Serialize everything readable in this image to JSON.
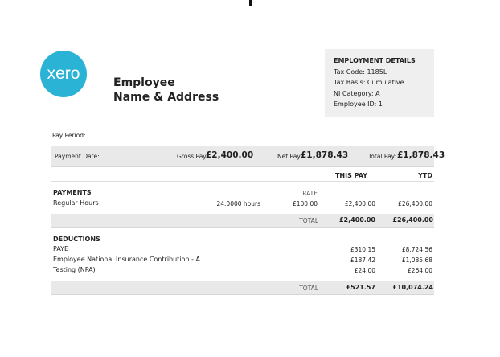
{
  "logo": "xero",
  "employee": {
    "line1": "Employee",
    "line2": "Name & Address"
  },
  "employment_details": {
    "title": "EMPLOYMENT DETAILS",
    "tax_code": "Tax Code: 1185L",
    "tax_basis": "Tax Basis: Cumulative",
    "ni_category": "NI Category: A",
    "employee_id": "Employee ID: 1"
  },
  "pay_period_label": "Pay Period:",
  "summary": {
    "payment_date_label": "Payment Date:",
    "gross_label": "Gross Pay:",
    "gross": "£2,400.00",
    "net_label": "Net Pay:",
    "net": "£1,878.43",
    "total_label": "Total Pay:",
    "total": "£1,878.43"
  },
  "columns": {
    "this_pay": "THIS PAY",
    "ytd": "YTD",
    "rate": "RATE"
  },
  "payments": {
    "title": "PAYMENTS",
    "rows": [
      {
        "name": "Regular Hours",
        "hours": "24.0000 hours",
        "rate": "£100.00",
        "this_pay": "£2,400.00",
        "ytd": "£26,400.00"
      }
    ],
    "total_label": "TOTAL",
    "total_this_pay": "£2,400.00",
    "total_ytd": "£26,400.00"
  },
  "deductions": {
    "title": "DEDUCTIONS",
    "rows": [
      {
        "name": "PAYE",
        "this_pay": "£310.15",
        "ytd": "£8,724.56"
      },
      {
        "name": "Employee National Insurance Contribution - A",
        "this_pay": "£187.42",
        "ytd": "£1,085.68"
      },
      {
        "name": "Testing (NPA)",
        "this_pay": "£24.00",
        "ytd": "£264.00"
      }
    ],
    "total_label": "TOTAL",
    "total_this_pay": "£521.57",
    "total_ytd": "£10,074.24"
  }
}
